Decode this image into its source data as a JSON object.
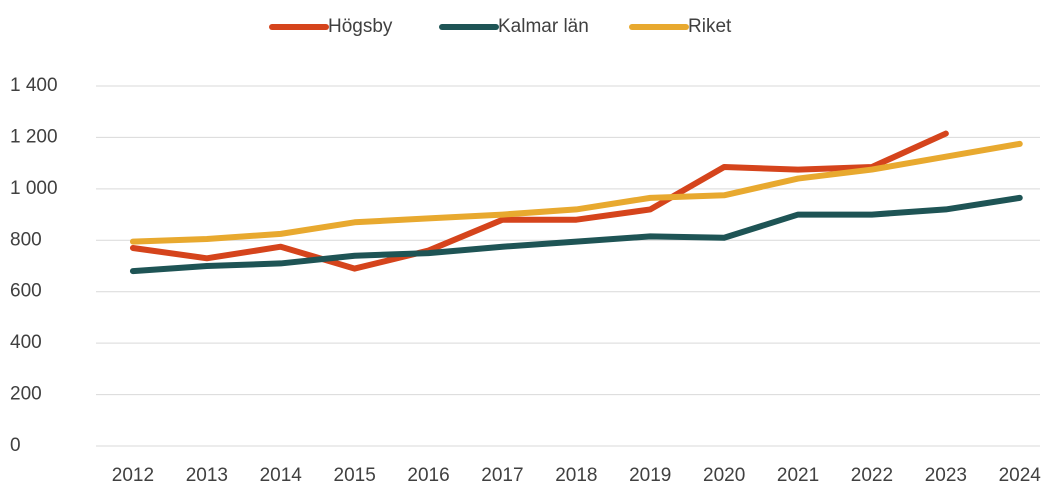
{
  "chart_data": {
    "type": "line",
    "categories": [
      "2012",
      "2013",
      "2014",
      "2015",
      "2016",
      "2017",
      "2018",
      "2019",
      "2020",
      "2021",
      "2022",
      "2023",
      "2024"
    ],
    "series": [
      {
        "name": "Högsby",
        "color": "#d5441c",
        "values": [
          770,
          730,
          775,
          690,
          760,
          880,
          880,
          920,
          1085,
          1075,
          1085,
          1215,
          null
        ]
      },
      {
        "name": "Kalmar län",
        "color": "#1e5455",
        "values": [
          680,
          700,
          710,
          740,
          750,
          775,
          795,
          815,
          810,
          900,
          900,
          920,
          965
        ]
      },
      {
        "name": "Riket",
        "color": "#e8a92f",
        "values": [
          795,
          805,
          825,
          870,
          885,
          900,
          920,
          965,
          975,
          1040,
          1075,
          1125,
          1175
        ]
      }
    ],
    "ylim": [
      0,
      1400
    ],
    "yticks": [
      0,
      200,
      400,
      600,
      800,
      {
        "value": 1000,
        "label": "1 000"
      },
      {
        "value": 1200,
        "label": "1 200"
      },
      {
        "value": 1400,
        "label": "1 400"
      }
    ],
    "grid": true,
    "legend": "top"
  }
}
